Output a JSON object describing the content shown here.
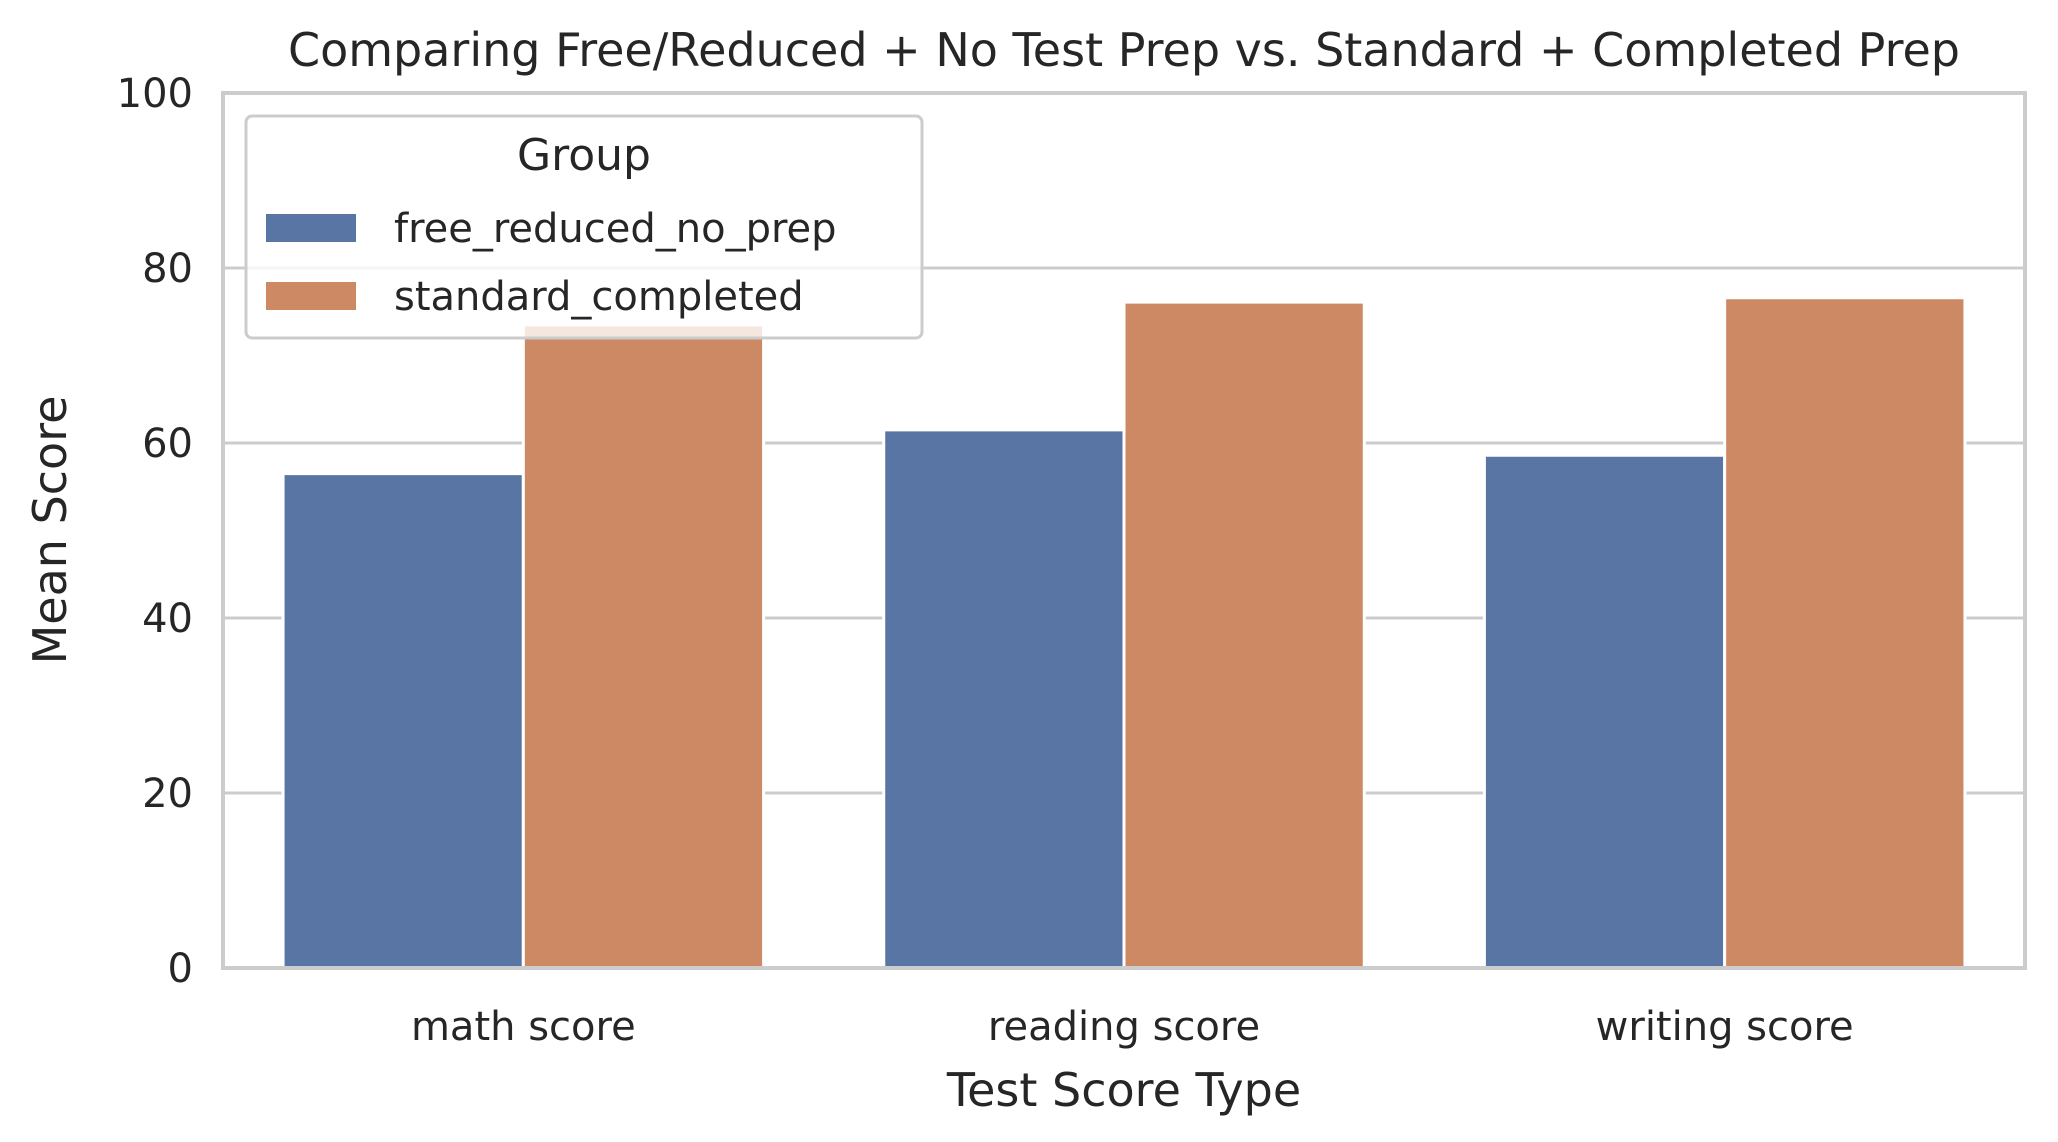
{
  "chart_data": {
    "type": "bar",
    "title": "Comparing Free/Reduced + No Test Prep vs. Standard + Completed Prep",
    "xlabel": "Test Score Type",
    "ylabel": "Mean Score",
    "ylim": [
      0,
      100
    ],
    "yticks": [
      "0",
      "20",
      "40",
      "60",
      "80",
      "100"
    ],
    "categories": [
      "math score",
      "reading score",
      "writing score"
    ],
    "series": [
      {
        "name": "free_reduced_no_prep",
        "color": "#5975a4",
        "values": [
          56.5,
          61.5,
          58.6
        ]
      },
      {
        "name": "standard_completed",
        "color": "#cc8963",
        "values": [
          73.5,
          76.1,
          76.6
        ]
      }
    ],
    "legend": {
      "title": "Group",
      "placement": "upper-left"
    },
    "grid": true
  }
}
